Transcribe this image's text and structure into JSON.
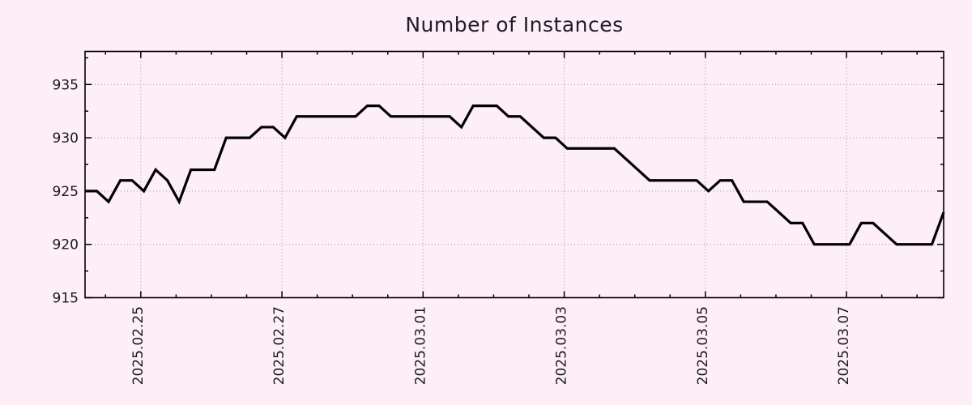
{
  "chart_data": {
    "type": "line",
    "title": "Number of Instances",
    "background_color": "#fdeef8",
    "line_color": "#000000",
    "grid_color": "#9a9a9a",
    "axis_color": "#000000",
    "text_color": "#1a1a1a",
    "legend": "none",
    "grid": "dotted majors",
    "x_axis": {
      "tick_labels": [
        "2025.02.25",
        "2025.02.27",
        "2025.03.01",
        "2025.03.03",
        "2025.03.05",
        "2025.03.07"
      ],
      "tick_day_offsets": [
        0.79,
        2.79,
        4.79,
        6.79,
        8.79,
        10.79
      ],
      "minor_tick_start_day": 0.29,
      "minor_tick_step_days": 0.5,
      "total_span_days": 12.1667
    },
    "y_axis": {
      "tick_labels": [
        "915",
        "920",
        "925",
        "930",
        "935"
      ],
      "tick_values": [
        915,
        920,
        925,
        930,
        935
      ],
      "minor_tick_values": [
        917.5,
        922.5,
        927.5,
        932.5,
        937.5
      ],
      "min": 915,
      "max": 938.1
    },
    "series": [
      {
        "name": "instances",
        "start_day_offset": 0,
        "sample_interval_days": 0.1666667,
        "values": [
          925,
          925,
          924,
          926,
          926,
          925,
          927,
          926,
          924,
          927,
          927,
          927,
          930,
          930,
          930,
          931,
          931,
          930,
          932,
          932,
          932,
          932,
          932,
          932,
          933,
          933,
          932,
          932,
          932,
          932,
          932,
          932,
          931,
          933,
          933,
          933,
          932,
          932,
          931,
          930,
          930,
          929,
          929,
          929,
          929,
          929,
          928,
          927,
          926,
          926,
          926,
          926,
          926,
          925,
          926,
          926,
          924,
          924,
          924,
          923,
          922,
          922,
          920,
          920,
          920,
          920,
          922,
          922,
          921,
          920,
          920,
          920,
          920,
          923
        ]
      }
    ]
  }
}
